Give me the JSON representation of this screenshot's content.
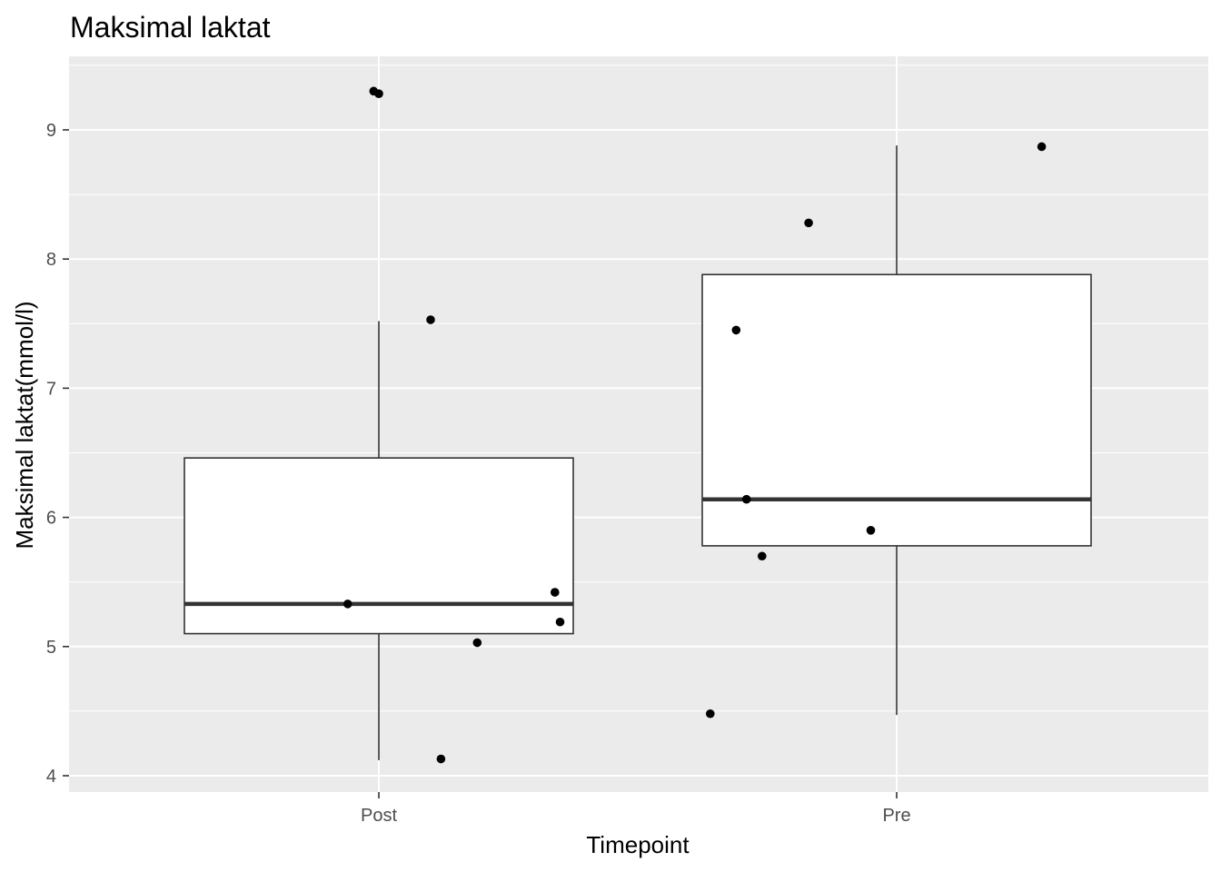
{
  "chart_data": {
    "type": "boxplot",
    "title": "Maksimal laktat",
    "xlabel": "Timepoint",
    "ylabel": "Maksimal laktat(mmol/l)",
    "categories": [
      "Post",
      "Pre"
    ],
    "ylim": [
      3.86,
      9.55
    ],
    "yticks": [
      4,
      5,
      6,
      7,
      8,
      9
    ],
    "grid": true,
    "background": "#ebebeb",
    "boxes": [
      {
        "category": "Post",
        "whisker_low": 4.12,
        "q1": 5.1,
        "median": 5.33,
        "q3": 6.46,
        "whisker_high": 7.52
      },
      {
        "category": "Pre",
        "whisker_low": 4.47,
        "q1": 5.78,
        "median": 6.14,
        "q3": 7.88,
        "whisker_high": 8.88
      }
    ],
    "points": [
      {
        "category": "Post",
        "jitter": -0.01,
        "y": 9.3
      },
      {
        "category": "Post",
        "jitter": 0.0,
        "y": 9.28
      },
      {
        "category": "Post",
        "jitter": 0.1,
        "y": 7.53
      },
      {
        "category": "Post",
        "jitter": -0.06,
        "y": 5.33
      },
      {
        "category": "Post",
        "jitter": 0.34,
        "y": 5.42
      },
      {
        "category": "Post",
        "jitter": 0.35,
        "y": 5.19
      },
      {
        "category": "Post",
        "jitter": 0.19,
        "y": 5.03
      },
      {
        "category": "Post",
        "jitter": 0.12,
        "y": 4.13
      },
      {
        "category": "Pre",
        "jitter": 0.28,
        "y": 8.87
      },
      {
        "category": "Pre",
        "jitter": -0.17,
        "y": 8.28
      },
      {
        "category": "Pre",
        "jitter": -0.31,
        "y": 7.45
      },
      {
        "category": "Pre",
        "jitter": -0.29,
        "y": 6.14
      },
      {
        "category": "Pre",
        "jitter": -0.26,
        "y": 5.7
      },
      {
        "category": "Pre",
        "jitter": -0.05,
        "y": 5.9
      },
      {
        "category": "Pre",
        "jitter": -0.36,
        "y": 4.48
      }
    ]
  }
}
